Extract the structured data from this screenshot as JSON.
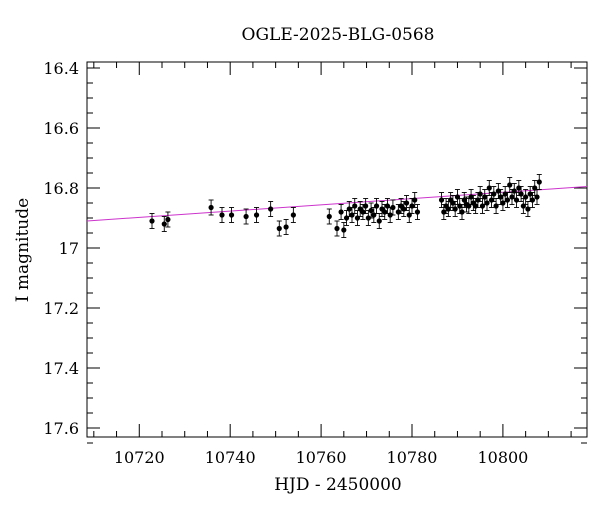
{
  "chart_data": {
    "type": "scatter",
    "title": "OGLE-2025-BLG-0568",
    "xlabel": "HJD - 2450000",
    "ylabel": "I magnitude",
    "xlim": [
      10708.5,
      10818.5
    ],
    "ylim": [
      17.63,
      16.38
    ],
    "y_inverted": true,
    "grid": false,
    "x_ticks": [
      10720,
      10740,
      10760,
      10780,
      10800
    ],
    "x_tick_labels": [
      "10720",
      "10740",
      "10760",
      "10780",
      "10800"
    ],
    "y_ticks": [
      16.4,
      16.6,
      16.8,
      17,
      17.2,
      17.4,
      17.6
    ],
    "y_tick_labels": [
      "16.4",
      "16.6",
      "16.8",
      "17",
      "17.2",
      "17.4",
      "17.6"
    ],
    "colors": {
      "points": "#000000",
      "model": "#cc33cc"
    },
    "model_line": {
      "x": [
        10708.5,
        10818.5
      ],
      "y": [
        16.91,
        16.795
      ]
    },
    "points": {
      "x": [
        10722.8,
        10725.5,
        10726.3,
        10735.8,
        10738.2,
        10740.3,
        10743.5,
        10745.8,
        10748.9,
        10750.8,
        10752.3,
        10753.9,
        10761.8,
        10763.5,
        10764.4,
        10765.0,
        10765.6,
        10766.2,
        10766.8,
        10767.4,
        10768.0,
        10768.6,
        10769.2,
        10769.8,
        10770.4,
        10771.0,
        10771.6,
        10772.2,
        10772.8,
        10773.4,
        10774.0,
        10774.6,
        10775.2,
        10775.8,
        10777.0,
        10777.6,
        10778.2,
        10778.8,
        10779.4,
        10780.0,
        10780.6,
        10781.2,
        10786.5,
        10787.0,
        10787.5,
        10788.0,
        10788.5,
        10789.0,
        10789.5,
        10790.0,
        10790.5,
        10791.0,
        10791.5,
        10792.0,
        10792.5,
        10793.0,
        10793.5,
        10794.0,
        10794.5,
        10795.0,
        10795.5,
        10796.0,
        10796.5,
        10797.0,
        10797.5,
        10798.0,
        10798.5,
        10799.0,
        10799.5,
        10800.0,
        10800.5,
        10801.0,
        10801.5,
        10802.0,
        10802.5,
        10803.0,
        10803.5,
        10804.0,
        10804.5,
        10805.0,
        10805.5,
        10806.0,
        10806.5,
        10807.0,
        10807.5,
        10808.0
      ],
      "y": [
        16.91,
        16.92,
        16.905,
        16.865,
        16.89,
        16.89,
        16.895,
        16.89,
        16.87,
        16.935,
        16.93,
        16.89,
        16.895,
        16.935,
        16.88,
        16.94,
        16.9,
        16.87,
        16.89,
        16.86,
        16.9,
        16.87,
        16.88,
        16.86,
        16.9,
        16.875,
        16.89,
        16.86,
        16.91,
        16.87,
        16.88,
        16.86,
        16.89,
        16.865,
        16.88,
        16.86,
        16.87,
        16.85,
        16.89,
        16.86,
        16.84,
        16.88,
        16.84,
        16.88,
        16.86,
        16.87,
        16.84,
        16.85,
        16.87,
        16.83,
        16.86,
        16.88,
        16.84,
        16.855,
        16.86,
        16.83,
        16.85,
        16.86,
        16.84,
        16.82,
        16.86,
        16.83,
        16.85,
        16.8,
        16.84,
        16.82,
        16.86,
        16.81,
        16.83,
        16.85,
        16.82,
        16.84,
        16.79,
        16.83,
        16.81,
        16.84,
        16.8,
        16.82,
        16.86,
        16.83,
        16.87,
        16.82,
        16.84,
        16.8,
        16.83,
        16.78
      ],
      "error": 0.025
    }
  }
}
